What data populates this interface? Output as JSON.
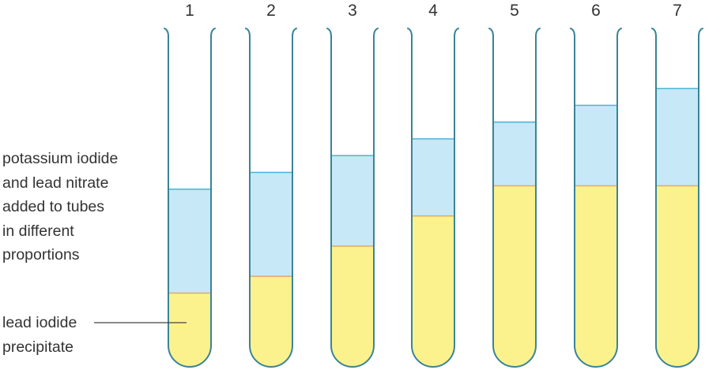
{
  "colors": {
    "tube_outline": "#3a8497",
    "solution": "#c6e8f7",
    "solution_edge": "#4ab4d6",
    "precipitate": "#fbf28e",
    "precipitate_edge": "#e3a86c",
    "text": "#333333"
  },
  "tubes": [
    {
      "label": "1",
      "precipitate_level": 0.22,
      "liquid_level": 0.53
    },
    {
      "label": "2",
      "precipitate_level": 0.27,
      "liquid_level": 0.58
    },
    {
      "label": "3",
      "precipitate_level": 0.36,
      "liquid_level": 0.63
    },
    {
      "label": "4",
      "precipitate_level": 0.45,
      "liquid_level": 0.68
    },
    {
      "label": "5",
      "precipitate_level": 0.54,
      "liquid_level": 0.73
    },
    {
      "label": "6",
      "precipitate_level": 0.54,
      "liquid_level": 0.78
    },
    {
      "label": "7",
      "precipitate_level": 0.54,
      "liquid_level": 0.83
    }
  ],
  "labels": {
    "reagents": [
      "potassium iodide",
      "and lead nitrate",
      "added to tubes",
      "in different",
      "proportions"
    ],
    "precipitate": [
      "lead iodide",
      "precipitate"
    ]
  }
}
